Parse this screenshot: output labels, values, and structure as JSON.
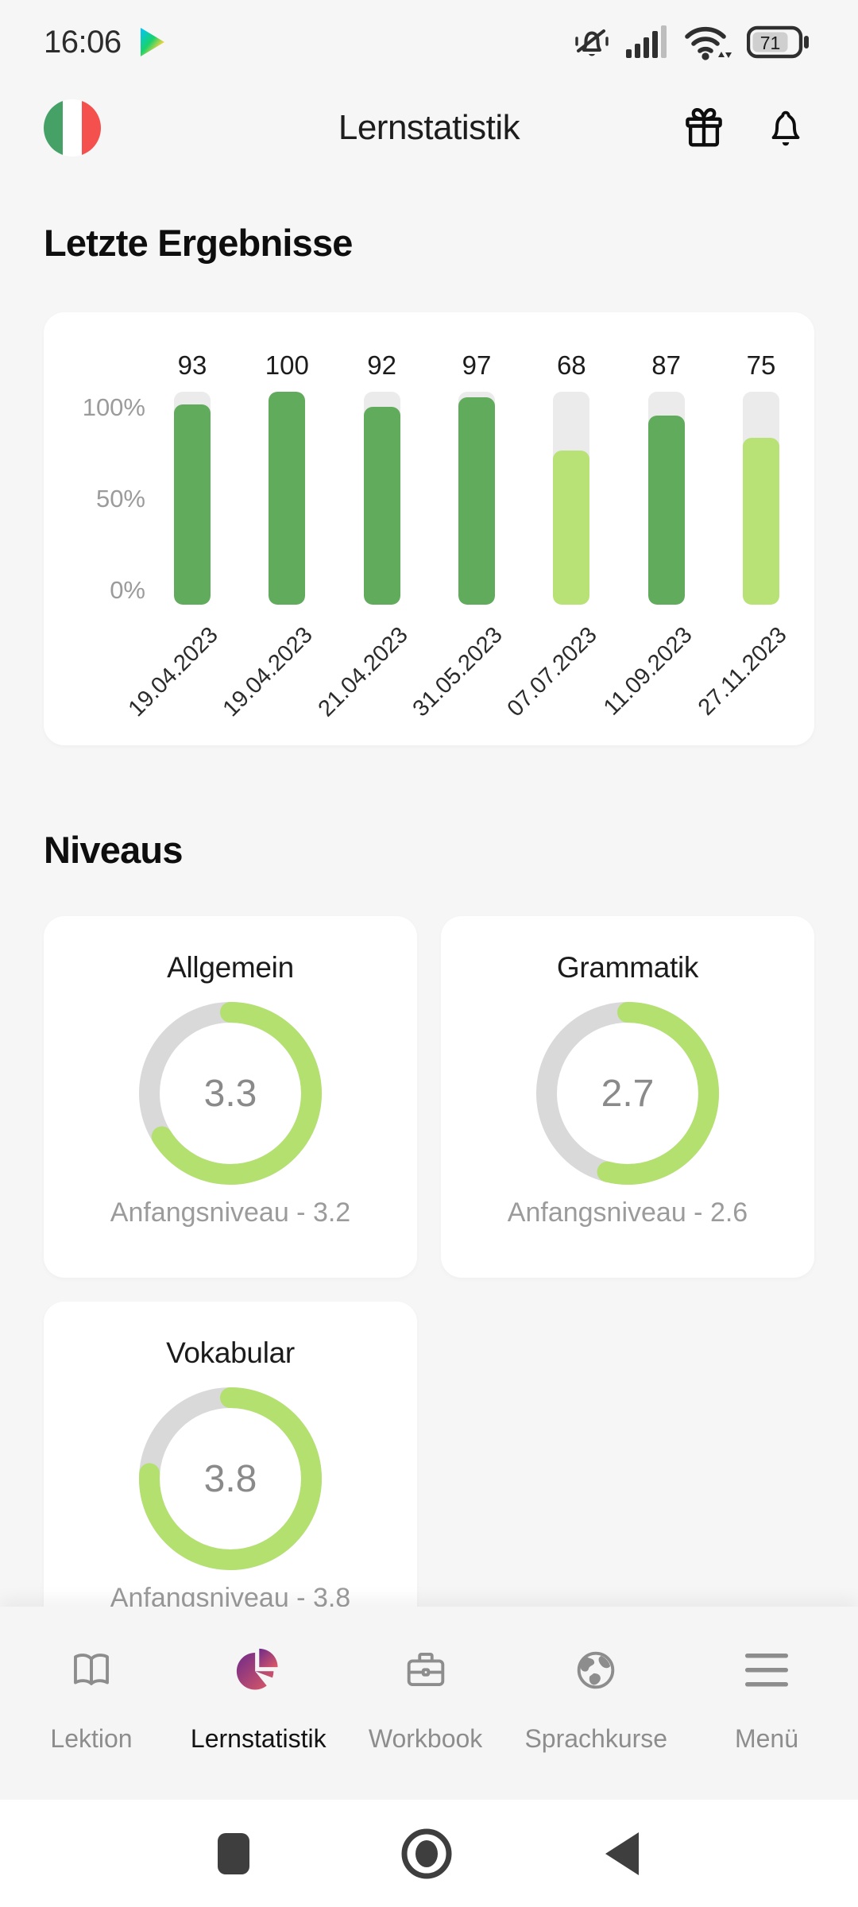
{
  "status_bar": {
    "time": "16:06",
    "battery": "71",
    "icons": [
      "play-store",
      "notifications-muted",
      "signal-strength",
      "wifi",
      "battery"
    ]
  },
  "header": {
    "title": "Lernstatistik",
    "flag": "italian-flag",
    "flag_colors": {
      "green": "#45a166",
      "white": "#ffffff",
      "red": "#f4504d"
    },
    "actions": [
      "gift",
      "notifications"
    ]
  },
  "sections": {
    "results_heading": "Letzte Ergebnisse",
    "levels_heading": "Niveaus"
  },
  "chart_data": {
    "type": "bar",
    "title": "Letzte Ergebnisse",
    "categories": [
      "19.04.2023",
      "19.04.2023",
      "21.04.2023",
      "31.05.2023",
      "07.07.2023",
      "11.09.2023",
      "27.11.2023"
    ],
    "values": [
      93,
      100,
      92,
      97,
      68,
      87,
      75
    ],
    "bar_styles": [
      "dark",
      "dark",
      "dark",
      "dark",
      "light",
      "dark",
      "light"
    ],
    "ytick_labels": [
      "100%",
      "50%",
      "0%"
    ],
    "ylim": [
      0,
      100
    ],
    "grid": false,
    "legend": false,
    "colors": {
      "dark": "#61ac5c",
      "light": "#b9e276",
      "track": "#ebebeb"
    }
  },
  "levels": {
    "max": 5,
    "ring_color": "#b3e06f",
    "ring_track_color": "#d9d9d9",
    "items": [
      {
        "title": "Allgemein",
        "value": 3.3,
        "value_label": "3.3",
        "caption": "Anfangsniveau - 3.2"
      },
      {
        "title": "Grammatik",
        "value": 2.7,
        "value_label": "2.7",
        "caption": "Anfangsniveau - 2.6"
      },
      {
        "title": "Vokabular",
        "value": 3.8,
        "value_label": "3.8",
        "caption": "Anfangsniveau - 3.8"
      }
    ]
  },
  "bottom_nav": {
    "active": "Lernstatistik",
    "active_gradient": [
      "#6e2b8a",
      "#e05a64"
    ],
    "items": [
      {
        "label": "Lektion",
        "icon": "book-icon"
      },
      {
        "label": "Lernstatistik",
        "icon": "pie-chart-icon"
      },
      {
        "label": "Workbook",
        "icon": "briefcase-icon"
      },
      {
        "label": "Sprachkurse",
        "icon": "globe-icon"
      },
      {
        "label": "Menü",
        "icon": "menu-icon"
      }
    ]
  },
  "android_nav": {
    "buttons": [
      "recents-square",
      "home-circle",
      "back-triangle"
    ],
    "color": "#3e3e3e"
  }
}
